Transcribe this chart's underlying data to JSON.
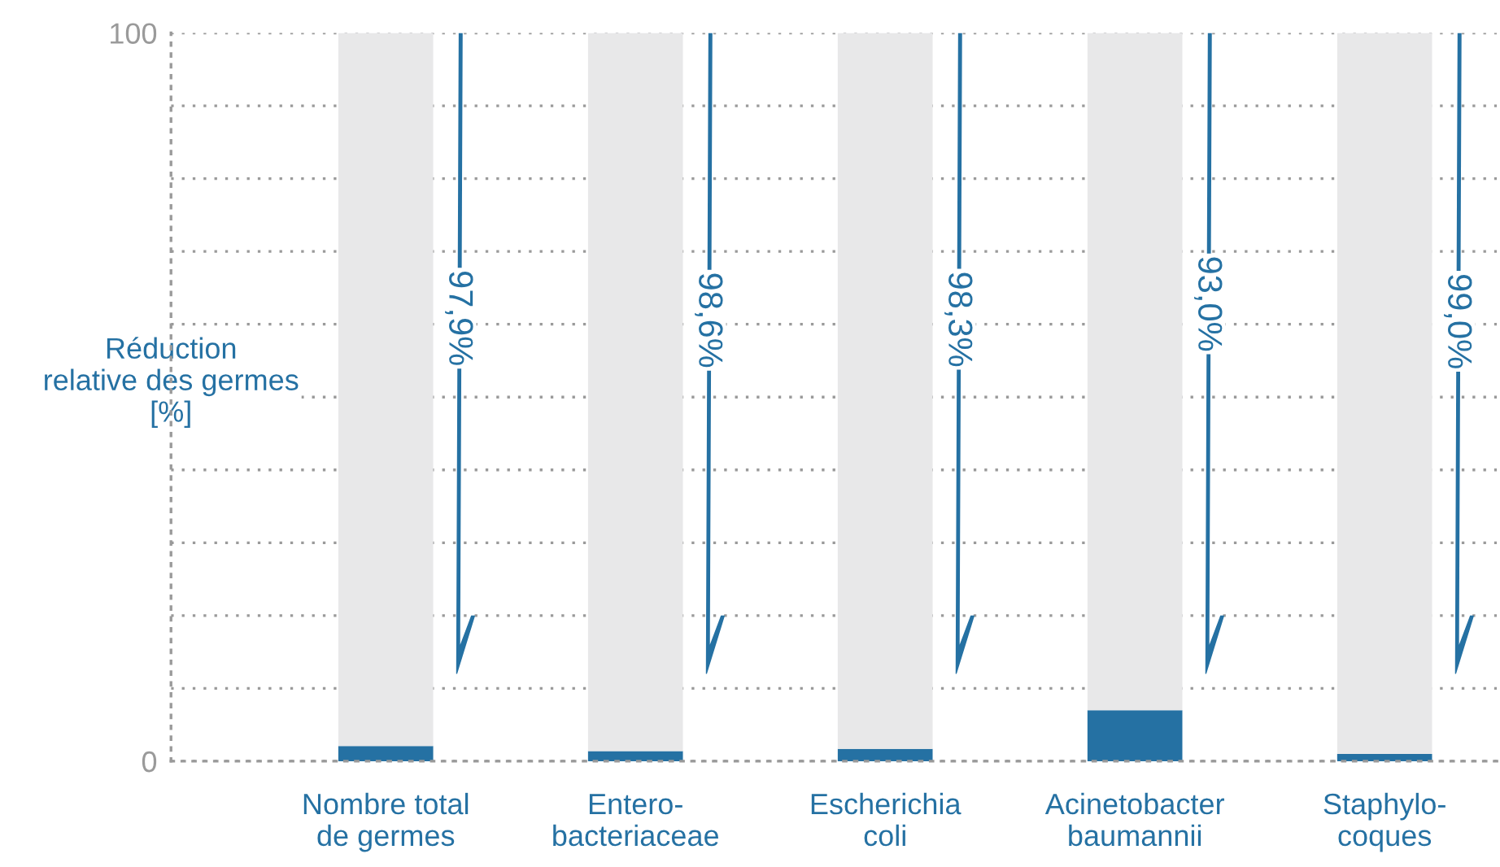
{
  "chart_data": {
    "type": "bar",
    "stacked": true,
    "ylabel": "Réduction\nrelative des germes\n[%]",
    "categories": [
      "Nombre total\nde germes",
      "Entero-\nbacteriaceae",
      "Escherichia\ncoli",
      "Acinetobacter\nbaumannii",
      "Staphylo-\ncoques"
    ],
    "series": [
      {
        "color": "#2571a3",
        "values": [
          2.1,
          1.4,
          1.7,
          7.0,
          1.0
        ]
      },
      {
        "color": "#e8e8e9",
        "values": [
          97.9,
          98.6,
          98.3,
          93.0,
          99.0
        ],
        "value_labels": [
          "97,9%",
          "98,6%",
          "98,3%",
          "93,0%",
          "99,0%"
        ]
      }
    ],
    "ylim": [
      0,
      100
    ],
    "yticks": [
      0,
      {
        "value": 10,
        "label": null
      },
      {
        "value": 20,
        "label": null
      },
      {
        "value": 30,
        "label": null
      },
      {
        "value": 40,
        "label": null
      },
      {
        "value": 50,
        "label": null
      },
      {
        "value": 60,
        "label": null
      },
      {
        "value": 70,
        "label": null
      },
      {
        "value": 80,
        "label": null
      },
      {
        "value": 90,
        "label": null
      },
      100
    ],
    "grid": "y",
    "legend": false
  }
}
